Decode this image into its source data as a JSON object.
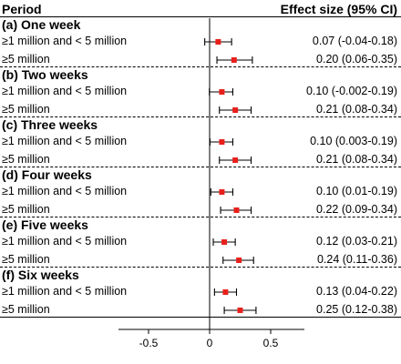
{
  "header": {
    "left": "Period",
    "right": "Effect size (95% CI)"
  },
  "chart_data": {
    "type": "forest",
    "title": "",
    "xlabel": "",
    "xlim": [
      -0.9,
      0.9
    ],
    "ticks": [
      {
        "value": -0.5,
        "label": "-0.5"
      },
      {
        "value": 0,
        "label": "0"
      },
      {
        "value": 0.5,
        "label": "0.5"
      }
    ],
    "reference_line": 0,
    "point_color": "#e8201c",
    "whisker_color": "#000000",
    "groups": [
      {
        "label": "(a) One week",
        "rows": [
          {
            "label": "≥1 million and < 5 million",
            "estimate": 0.07,
            "lower": -0.04,
            "upper": 0.18,
            "text": "0.07 (-0.04-0.18)"
          },
          {
            "label": "≥5 million",
            "estimate": 0.2,
            "lower": 0.06,
            "upper": 0.35,
            "text": "0.20 (0.06-0.35)"
          }
        ]
      },
      {
        "label": "(b) Two weeks",
        "rows": [
          {
            "label": "≥1 million and < 5 million",
            "estimate": 0.1,
            "lower": -0.002,
            "upper": 0.19,
            "text": "0.10 (-0.002-0.19)"
          },
          {
            "label": "≥5 million",
            "estimate": 0.21,
            "lower": 0.08,
            "upper": 0.34,
            "text": "0.21 (0.08-0.34)"
          }
        ]
      },
      {
        "label": "(c) Three weeks",
        "rows": [
          {
            "label": "≥1 million and < 5 million",
            "estimate": 0.1,
            "lower": 0.003,
            "upper": 0.19,
            "text": "0.10 (0.003-0.19)"
          },
          {
            "label": "≥5 million",
            "estimate": 0.21,
            "lower": 0.08,
            "upper": 0.34,
            "text": "0.21 (0.08-0.34)"
          }
        ]
      },
      {
        "label": "(d) Four weeks",
        "rows": [
          {
            "label": "≥1 million and < 5 million",
            "estimate": 0.1,
            "lower": 0.01,
            "upper": 0.19,
            "text": "0.10 (0.01-0.19)"
          },
          {
            "label": "≥5 million",
            "estimate": 0.22,
            "lower": 0.09,
            "upper": 0.34,
            "text": "0.22 (0.09-0.34)"
          }
        ]
      },
      {
        "label": "(e) Five weeks",
        "rows": [
          {
            "label": "≥1 million and < 5 million",
            "estimate": 0.12,
            "lower": 0.03,
            "upper": 0.21,
            "text": "0.12 (0.03-0.21)"
          },
          {
            "label": "≥5 million",
            "estimate": 0.24,
            "lower": 0.11,
            "upper": 0.36,
            "text": "0.24 (0.11-0.36)"
          }
        ]
      },
      {
        "label": "(f) Six weeks",
        "rows": [
          {
            "label": "≥1 million and < 5 million",
            "estimate": 0.13,
            "lower": 0.04,
            "upper": 0.22,
            "text": "0.13 (0.04-0.22)"
          },
          {
            "label": "≥5 million",
            "estimate": 0.25,
            "lower": 0.12,
            "upper": 0.38,
            "text": "0.25 (0.12-0.38)"
          }
        ]
      }
    ]
  }
}
